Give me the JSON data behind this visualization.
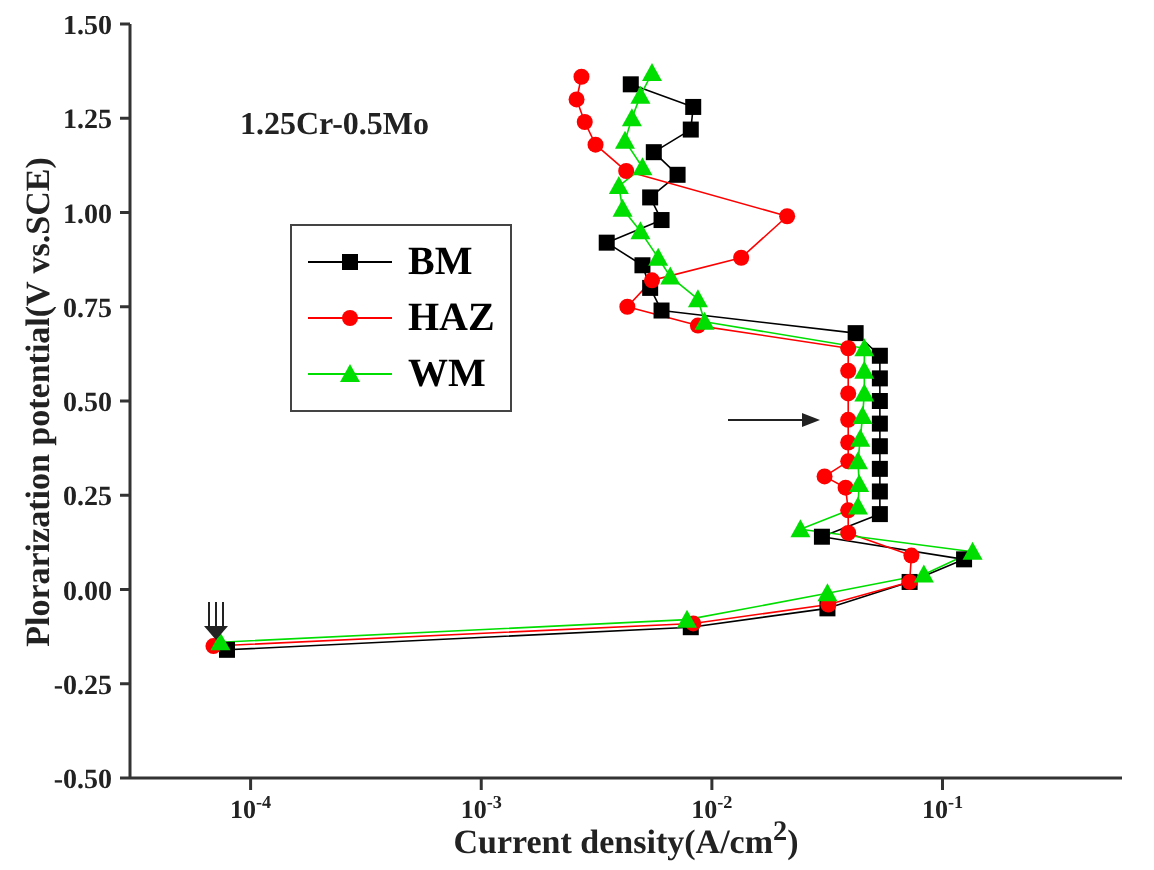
{
  "chart_data": {
    "type": "line",
    "xlabel": "Current density(A/cm$^{2}$)",
    "ylabel": "Plorarization potential(V vs.SCE)",
    "log": "x",
    "xlim": [
      3e-05,
      0.6
    ],
    "xticks": [
      {
        "value": 0.0001,
        "label": "10$^{-4}$"
      },
      {
        "value": 0.001,
        "label": "10$^{-3}$"
      },
      {
        "value": 0.01,
        "label": "10$^{-2}$"
      },
      {
        "value": 0.1,
        "label": "10$^{-1}$"
      }
    ],
    "ylim": [
      -0.5,
      1.5
    ],
    "yticks": [
      {
        "value": -0.5,
        "label": "-0.50"
      },
      {
        "value": -0.25,
        "label": "-0.25"
      },
      {
        "value": 0,
        "label": "0.00"
      },
      {
        "value": 0.25,
        "label": "0.25"
      },
      {
        "value": 0.5,
        "label": "0.50"
      },
      {
        "value": 0.75,
        "label": "0.75"
      },
      {
        "value": 1,
        "label": "1.00"
      },
      {
        "value": 1.25,
        "label": "1.25"
      },
      {
        "value": 1.5,
        "label": "1.50"
      }
    ],
    "legend": "top left",
    "annotations": [
      "1.25Cr-0.5Mo"
    ],
    "series": [
      {
        "name": "BM",
        "color": "#000000",
        "marker": "square",
        "x": [
          0.00445,
          0.0083,
          0.0081,
          0.0056,
          0.0071,
          0.0054,
          0.00605,
          0.0035,
          0.005,
          0.0054,
          0.00605,
          0.042,
          0.0535,
          0.0535,
          0.0535,
          0.0535,
          0.0535,
          0.0535,
          0.0535,
          0.0535,
          0.03,
          0.124,
          0.072,
          0.0317,
          0.0081,
          7.9e-05
        ],
        "values": [
          1.34,
          1.28,
          1.22,
          1.16,
          1.1,
          1.04,
          0.98,
          0.92,
          0.86,
          0.8,
          0.74,
          0.68,
          0.62,
          0.56,
          0.5,
          0.44,
          0.38,
          0.32,
          0.26,
          0.2,
          0.14,
          0.08,
          0.02,
          -0.05,
          -0.1,
          -0.16
        ]
      },
      {
        "name": "HAZ",
        "color": "#ff0000",
        "marker": "circle",
        "x": [
          0.00272,
          0.00259,
          0.00281,
          0.00313,
          0.00425,
          0.0212,
          0.0134,
          0.0055,
          0.0043,
          0.0087,
          0.039,
          0.039,
          0.039,
          0.039,
          0.039,
          0.039,
          0.0308,
          0.038,
          0.039,
          0.039,
          0.0733,
          0.072,
          0.032,
          0.0083,
          6.9e-05
        ],
        "values": [
          1.36,
          1.3,
          1.24,
          1.18,
          1.11,
          0.99,
          0.88,
          0.82,
          0.75,
          0.7,
          0.64,
          0.58,
          0.52,
          0.45,
          0.39,
          0.34,
          0.3,
          0.27,
          0.21,
          0.15,
          0.09,
          0.02,
          -0.04,
          -0.09,
          -0.15
        ]
      },
      {
        "name": "WM",
        "color": "#00dd00",
        "marker": "triangle",
        "x": [
          0.0055,
          0.0049,
          0.0045,
          0.0042,
          0.005,
          0.00395,
          0.0041,
          0.0049,
          0.00585,
          0.0066,
          0.0087,
          0.0093,
          0.0458,
          0.0458,
          0.0458,
          0.045,
          0.044,
          0.043,
          0.0435,
          0.043,
          0.0242,
          0.135,
          0.083,
          0.0317,
          0.0078,
          7.4e-05
        ],
        "values": [
          1.37,
          1.31,
          1.25,
          1.19,
          1.12,
          1.07,
          1.01,
          0.95,
          0.88,
          0.83,
          0.77,
          0.71,
          0.64,
          0.58,
          0.52,
          0.46,
          0.4,
          0.34,
          0.28,
          0.22,
          0.16,
          0.1,
          0.04,
          -0.01,
          -0.08,
          -0.14
        ]
      }
    ]
  }
}
